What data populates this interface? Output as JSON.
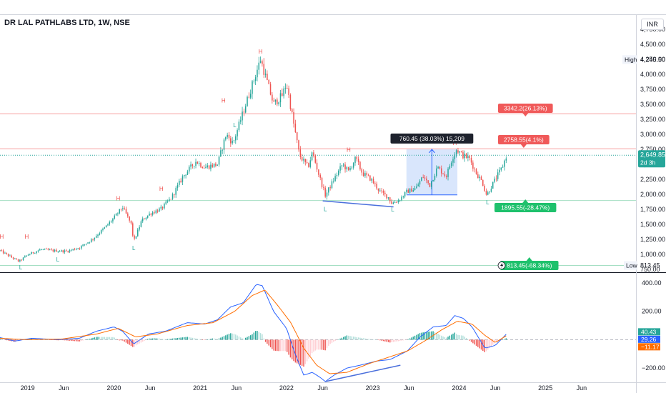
{
  "title": "DR LAL PATHLABS LTD, 1W, NSE",
  "currency": "INR",
  "colors": {
    "up": "#26a69a",
    "down": "#ef5350",
    "pivot": "#ef5350",
    "trend": "#4a6fdc",
    "macd": "#2962ff",
    "signal": "#ff6d00",
    "range_fill": "#cfe0fb",
    "resistance_line": "#f7a5a5",
    "support_line": "#a5dfc3",
    "current": "#26a69a"
  },
  "chart_data": {
    "type": "candlestick",
    "price_axis": {
      "ticks": [
        750,
        1000,
        1250,
        1500,
        1750,
        2000,
        2250,
        2500,
        2750,
        3000,
        3250,
        3500,
        3750,
        4000,
        4250,
        4500,
        4750
      ],
      "tick_labels": [
        "750.00",
        "1,000.00",
        "1,250.00",
        "1,500.00",
        "1,750.00",
        "2,000.00",
        "2,250.00",
        "2,500.00",
        "2,750.00",
        "3,000.00",
        "3,250.00",
        "3,500.00",
        "3,750.00",
        "4,000.00",
        "4,250.00",
        "4,500.00",
        "4,750.00"
      ],
      "range": [
        700,
        5000
      ]
    },
    "time_axis": {
      "labels": [
        {
          "label": "2019",
          "t": 2019.0
        },
        {
          "label": "Jun",
          "t": 2019.42
        },
        {
          "label": "2020",
          "t": 2020.0
        },
        {
          "label": "Jun",
          "t": 2020.42
        },
        {
          "label": "2021",
          "t": 2021.0
        },
        {
          "label": "Jun",
          "t": 2021.42
        },
        {
          "label": "2022",
          "t": 2022.0
        },
        {
          "label": "Jun",
          "t": 2022.42
        },
        {
          "label": "2023",
          "t": 2023.0
        },
        {
          "label": "Jun",
          "t": 2023.42
        },
        {
          "label": "2024",
          "t": 2024.0
        },
        {
          "label": "Jun",
          "t": 2024.42
        },
        {
          "label": "2025",
          "t": 2025.0
        },
        {
          "label": "Jun",
          "t": 2025.42
        }
      ],
      "range": [
        2018.68,
        2026.05
      ]
    },
    "price_path": [
      [
        2018.68,
        1060
      ],
      [
        2018.8,
        960
      ],
      [
        2018.9,
        880
      ],
      [
        2019.0,
        990
      ],
      [
        2019.15,
        1080
      ],
      [
        2019.3,
        1060
      ],
      [
        2019.45,
        1050
      ],
      [
        2019.6,
        1110
      ],
      [
        2019.75,
        1250
      ],
      [
        2019.9,
        1450
      ],
      [
        2020.02,
        1640
      ],
      [
        2020.1,
        1790
      ],
      [
        2020.2,
        1500
      ],
      [
        2020.23,
        1210
      ],
      [
        2020.32,
        1560
      ],
      [
        2020.42,
        1680
      ],
      [
        2020.55,
        1760
      ],
      [
        2020.67,
        1950
      ],
      [
        2020.8,
        2300
      ],
      [
        2020.95,
        2550
      ],
      [
        2021.05,
        2450
      ],
      [
        2021.2,
        2500
      ],
      [
        2021.3,
        3000
      ],
      [
        2021.38,
        2850
      ],
      [
        2021.5,
        3380
      ],
      [
        2021.62,
        3900
      ],
      [
        2021.7,
        4250
      ],
      [
        2021.76,
        3950
      ],
      [
        2021.85,
        3500
      ],
      [
        2021.95,
        3650
      ],
      [
        2022.0,
        3850
      ],
      [
        2022.08,
        3200
      ],
      [
        2022.15,
        2650
      ],
      [
        2022.25,
        2450
      ],
      [
        2022.3,
        2700
      ],
      [
        2022.38,
        2300
      ],
      [
        2022.45,
        1980
      ],
      [
        2022.55,
        2250
      ],
      [
        2022.65,
        2500
      ],
      [
        2022.72,
        2380
      ],
      [
        2022.8,
        2600
      ],
      [
        2022.88,
        2350
      ],
      [
        2022.98,
        2250
      ],
      [
        2023.08,
        2050
      ],
      [
        2023.18,
        1950
      ],
      [
        2023.22,
        1850
      ],
      [
        2023.3,
        1900
      ],
      [
        2023.4,
        2050
      ],
      [
        2023.5,
        2100
      ],
      [
        2023.58,
        2300
      ],
      [
        2023.66,
        2150
      ],
      [
        2023.75,
        2450
      ],
      [
        2023.85,
        2300
      ],
      [
        2023.92,
        2600
      ],
      [
        2023.97,
        2750
      ],
      [
        2024.04,
        2650
      ],
      [
        2024.12,
        2600
      ],
      [
        2024.2,
        2350
      ],
      [
        2024.27,
        2200
      ],
      [
        2024.32,
        1980
      ],
      [
        2024.38,
        2150
      ],
      [
        2024.44,
        2300
      ],
      [
        2024.5,
        2450
      ],
      [
        2024.55,
        2649.85
      ]
    ],
    "pivot_labels": [
      {
        "text": "H",
        "t": 2018.7,
        "price": 1260
      },
      {
        "text": "H",
        "t": 2018.99,
        "price": 1260
      },
      {
        "text": "H",
        "t": 2020.05,
        "price": 1900
      },
      {
        "text": "H",
        "t": 2020.55,
        "price": 2060
      },
      {
        "text": "H",
        "t": 2021.27,
        "price": 3530
      },
      {
        "text": "H",
        "t": 2021.7,
        "price": 4345
      },
      {
        "text": "H",
        "t": 2022.72,
        "price": 2710
      },
      {
        "text": "H",
        "t": 2023.95,
        "price": 2820
      },
      {
        "text": "L",
        "t": 2018.92,
        "price": 750
      },
      {
        "text": "L",
        "t": 2019.35,
        "price": 880
      },
      {
        "text": "L",
        "t": 2020.23,
        "price": 1070
      },
      {
        "text": "L",
        "t": 2021.4,
        "price": 3120
      },
      {
        "text": "L",
        "t": 2022.45,
        "price": 1720
      },
      {
        "text": "L",
        "t": 2023.23,
        "price": 1710
      },
      {
        "text": "L",
        "t": 2024.33,
        "price": 1830
      }
    ],
    "trendline": {
      "from": {
        "t": 2022.42,
        "price": 1890
      },
      "to": {
        "t": 2023.24,
        "price": 1790
      }
    },
    "range_measure": {
      "t0": 2023.39,
      "t1": 2023.98,
      "p0": 1990,
      "p1": 2750,
      "label": "760.45 (38.03%) 15,209"
    },
    "horizontal_levels": [
      {
        "price": 3342.2,
        "kind": "resistance",
        "label": "3342.2(26.13%)"
      },
      {
        "price": 2758.55,
        "kind": "resistance",
        "label": "2758.55(4.1%)"
      },
      {
        "price": 1895.55,
        "kind": "support",
        "label": "1895.55(-28.47%)"
      },
      {
        "price": 813.45,
        "kind": "support",
        "label": "813.45(-68.34%)"
      }
    ],
    "current_price": {
      "value": 2649.85,
      "label": "2,649.85",
      "countdown": "2d 3h"
    },
    "high_marker": {
      "label": "High",
      "price": 4245.5,
      "value_label": "4,245.50"
    },
    "low_marker": {
      "label": "Low",
      "price": 813.45,
      "value_label": "813.45"
    },
    "macd": {
      "ticks": [
        400,
        200,
        -200
      ],
      "tick_labels": [
        "400.00",
        "200.00",
        "−200.00"
      ],
      "range": [
        -300,
        470
      ],
      "macd_path": [
        [
          2018.68,
          15
        ],
        [
          2018.85,
          -10
        ],
        [
          2019.05,
          10
        ],
        [
          2019.35,
          0
        ],
        [
          2019.6,
          10
        ],
        [
          2019.8,
          60
        ],
        [
          2020.0,
          90
        ],
        [
          2020.1,
          60
        ],
        [
          2020.23,
          -30
        ],
        [
          2020.4,
          40
        ],
        [
          2020.6,
          60
        ],
        [
          2020.85,
          120
        ],
        [
          2021.05,
          110
        ],
        [
          2021.2,
          140
        ],
        [
          2021.35,
          230
        ],
        [
          2021.5,
          260
        ],
        [
          2021.65,
          390
        ],
        [
          2021.72,
          380
        ],
        [
          2021.85,
          200
        ],
        [
          2022.0,
          80
        ],
        [
          2022.1,
          -100
        ],
        [
          2022.2,
          -250
        ],
        [
          2022.3,
          -230
        ],
        [
          2022.4,
          -270
        ],
        [
          2022.45,
          -295
        ],
        [
          2022.55,
          -250
        ],
        [
          2022.7,
          -200
        ],
        [
          2022.85,
          -180
        ],
        [
          2023.05,
          -150
        ],
        [
          2023.2,
          -140
        ],
        [
          2023.4,
          -80
        ],
        [
          2023.55,
          20
        ],
        [
          2023.7,
          90
        ],
        [
          2023.85,
          100
        ],
        [
          2023.95,
          170
        ],
        [
          2024.05,
          150
        ],
        [
          2024.15,
          90
        ],
        [
          2024.3,
          -60
        ],
        [
          2024.42,
          -40
        ],
        [
          2024.55,
          40.43
        ]
      ],
      "signal_path": [
        [
          2018.68,
          10
        ],
        [
          2019.0,
          0
        ],
        [
          2019.4,
          5
        ],
        [
          2019.8,
          40
        ],
        [
          2020.05,
          80
        ],
        [
          2020.25,
          20
        ],
        [
          2020.5,
          40
        ],
        [
          2020.85,
          100
        ],
        [
          2021.15,
          120
        ],
        [
          2021.4,
          200
        ],
        [
          2021.6,
          310
        ],
        [
          2021.75,
          350
        ],
        [
          2021.9,
          240
        ],
        [
          2022.05,
          120
        ],
        [
          2022.2,
          -60
        ],
        [
          2022.35,
          -180
        ],
        [
          2022.5,
          -240
        ],
        [
          2022.7,
          -230
        ],
        [
          2022.95,
          -170
        ],
        [
          2023.2,
          -120
        ],
        [
          2023.4,
          -80
        ],
        [
          2023.6,
          -10
        ],
        [
          2023.8,
          70
        ],
        [
          2023.98,
          130
        ],
        [
          2024.15,
          110
        ],
        [
          2024.3,
          30
        ],
        [
          2024.42,
          -20
        ],
        [
          2024.55,
          29.26
        ]
      ],
      "trendline": {
        "from": {
          "t": 2022.45,
          "value": -295
        },
        "to": {
          "t": 2023.32,
          "value": -180
        }
      },
      "value_labels": [
        {
          "value": 40.43,
          "label": "40.43",
          "kind": "histogram"
        },
        {
          "value": 29.26,
          "label": "29.26",
          "kind": "macd"
        },
        {
          "value": -11.17,
          "label": "−11.17",
          "kind": "signal"
        }
      ]
    }
  }
}
